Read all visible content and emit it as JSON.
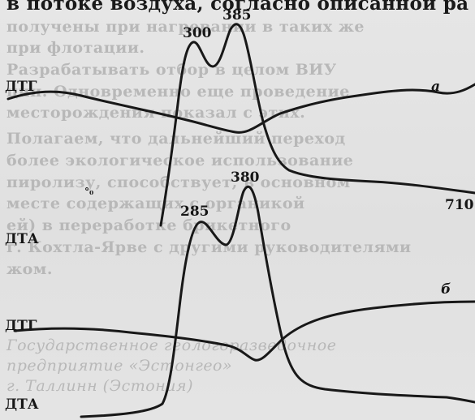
{
  "top_text": {
    "heading": "в потоке воздуха, согласно описанной ра"
  },
  "background_text": [
    "получены при нагревании в таких же",
    "при флотации.",
    "    Разрабатывать отбор в целом ВИУ",
    "ции. Одновременно еще проведение",
    "месторождения показал с этих.",
    "    Полагаем, что дальнейший переход",
    "более экологическое использование",
    "пиролизу, способствует, в основном",
    "месте содержащих с органикой",
    "ей) в переработке брикетного",
    "г. Кохтла-Ярве с другими руководителями",
    "жом.",
    "",
    "Государственное геологоразведочное",
    "предприятие «Эстонгео»",
    "г. Таллинн (Эстония)"
  ],
  "figure": {
    "panel_a": {
      "letter": "а",
      "dtg_label": "ДТГ",
      "dta_label": "ДТА",
      "peak_labels": [
        "300",
        "385"
      ],
      "end_label": "710",
      "marker": "°₀"
    },
    "panel_b": {
      "letter": "б",
      "dtg_label": "ДТГ",
      "dta_label": "ДТА",
      "peak_labels": [
        "285",
        "380"
      ]
    }
  }
}
